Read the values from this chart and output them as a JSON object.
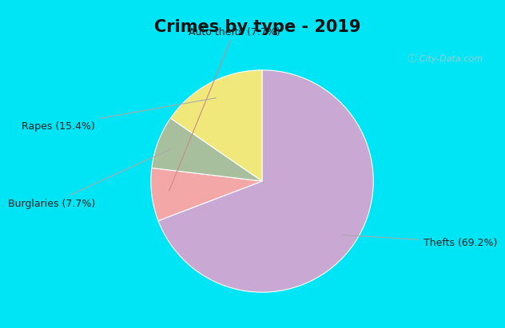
{
  "title": "Crimes by type - 2019",
  "values": [
    69.2,
    7.7,
    7.7,
    15.4
  ],
  "colors": [
    "#c9a8d4",
    "#f4a7a7",
    "#a8bf9e",
    "#f0e87a"
  ],
  "label_texts": [
    "Thefts (69.2%)",
    "Auto thefts (7.7%)",
    "Burglaries (7.7%)",
    "Rapes (15.4%)"
  ],
  "background_cyan": "#00e5f5",
  "background_inner": "#d8ede0",
  "title_fontsize": 15,
  "label_fontsize": 9,
  "watermark": "ⓘ City-Data.com",
  "startangle": 90
}
